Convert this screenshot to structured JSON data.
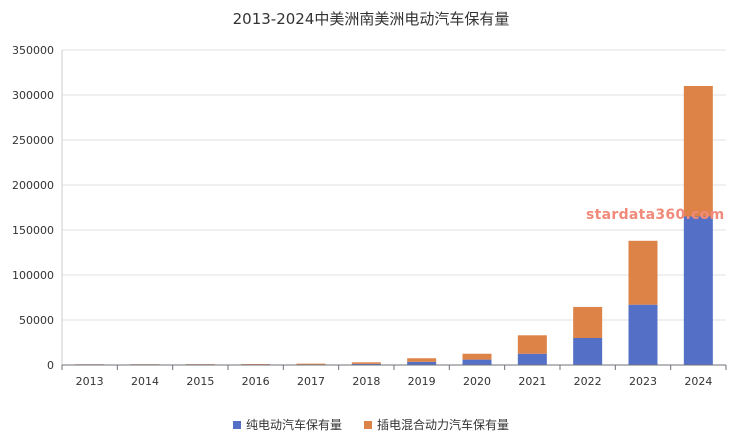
{
  "chart_data": {
    "type": "bar",
    "stacked": true,
    "title": "2013-2024中美洲南美洲电动汽车保有量",
    "xlabel": "",
    "ylabel": "",
    "categories": [
      "2013",
      "2014",
      "2015",
      "2016",
      "2017",
      "2018",
      "2019",
      "2020",
      "2021",
      "2022",
      "2023",
      "2024"
    ],
    "ylim": [
      0,
      350000
    ],
    "yticks": [
      0,
      50000,
      100000,
      150000,
      200000,
      250000,
      300000,
      350000
    ],
    "grid": true,
    "legend_position": "bottom",
    "series": [
      {
        "name": "纯电动汽车保有量",
        "color": "#5470c6",
        "values": [
          100,
          150,
          250,
          350,
          600,
          1300,
          3500,
          6000,
          12500,
          30000,
          67000,
          165000
        ]
      },
      {
        "name": "插电混合动力汽车保有量",
        "color": "#dd8347",
        "values": [
          50,
          100,
          200,
          400,
          900,
          1700,
          4000,
          6500,
          20500,
          34500,
          71000,
          145000
        ]
      }
    ]
  },
  "watermark": "stardata360.com"
}
